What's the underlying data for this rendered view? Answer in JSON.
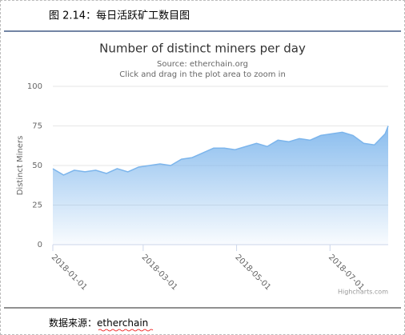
{
  "caption": "图 2.14：每日活跃矿工数目图",
  "source_note": {
    "label": "数据来源：",
    "name": "etherchain"
  },
  "chart_data": {
    "type": "area",
    "title": "Number of distinct miners per day",
    "subtitle": "Source: etherchain.org",
    "hint": "Click and drag in the plot area to zoom in",
    "y_label": "Distinct Miners",
    "credits": "Highcharts.com",
    "color": "#7cb5ec",
    "grid": true,
    "xlim": [
      "2018-01-01",
      "2018-08-08"
    ],
    "xticks": [
      "2018-01-01",
      "2018-03-01",
      "2018-05-01",
      "2018-07-01"
    ],
    "ylim": [
      0,
      100
    ],
    "yticks": [
      0,
      25,
      50,
      75,
      100
    ],
    "x": [
      "2018-01-01",
      "2018-01-08",
      "2018-01-15",
      "2018-01-22",
      "2018-01-29",
      "2018-02-05",
      "2018-02-12",
      "2018-02-19",
      "2018-02-26",
      "2018-03-05",
      "2018-03-12",
      "2018-03-19",
      "2018-03-26",
      "2018-04-02",
      "2018-04-09",
      "2018-04-16",
      "2018-04-23",
      "2018-04-30",
      "2018-05-07",
      "2018-05-14",
      "2018-05-21",
      "2018-05-28",
      "2018-06-04",
      "2018-06-11",
      "2018-06-18",
      "2018-06-25",
      "2018-07-02",
      "2018-07-09",
      "2018-07-16",
      "2018-07-23",
      "2018-07-30",
      "2018-08-06",
      "2018-08-08"
    ],
    "values": [
      48,
      44,
      47,
      46,
      47,
      45,
      48,
      46,
      49,
      50,
      51,
      50,
      54,
      55,
      58,
      61,
      61,
      60,
      62,
      64,
      62,
      66,
      65,
      67,
      66,
      69,
      70,
      71,
      69,
      64,
      63,
      70,
      75
    ]
  }
}
